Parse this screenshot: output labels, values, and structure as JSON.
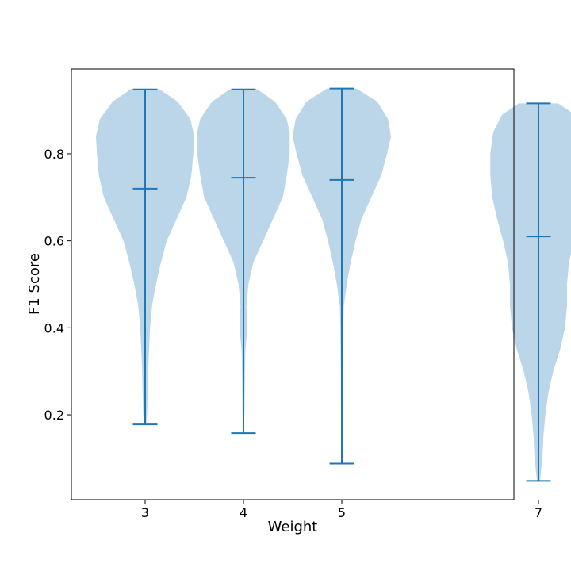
{
  "chart_data": {
    "type": "violin",
    "title": "",
    "xlabel": "Weight",
    "ylabel": "F1 Score",
    "categories": [
      "3",
      "4",
      "5",
      "7"
    ],
    "x_positions": [
      3,
      4,
      5,
      7
    ],
    "xlim": [
      2.25,
      6.75
    ],
    "ylim": [
      0.005,
      0.995
    ],
    "yticks": [
      0.2,
      0.4,
      0.6,
      0.8
    ],
    "ytick_labels": [
      "0.2",
      "0.4",
      "0.6",
      "0.8"
    ],
    "grid": false,
    "legend": "none",
    "colors": {
      "body": "#1f77b4",
      "body_alpha": 0.3,
      "lines": "#1f77b4"
    },
    "violins": [
      {
        "category": "3",
        "min": 0.178,
        "mean": 0.72,
        "max": 0.948,
        "density": [
          [
            0.178,
            0.01
          ],
          [
            0.2,
            0.02
          ],
          [
            0.25,
            0.025
          ],
          [
            0.3,
            0.03
          ],
          [
            0.35,
            0.04
          ],
          [
            0.4,
            0.05
          ],
          [
            0.45,
            0.07
          ],
          [
            0.5,
            0.11
          ],
          [
            0.55,
            0.16
          ],
          [
            0.6,
            0.22
          ],
          [
            0.65,
            0.32
          ],
          [
            0.7,
            0.42
          ],
          [
            0.75,
            0.47
          ],
          [
            0.8,
            0.49
          ],
          [
            0.84,
            0.5
          ],
          [
            0.88,
            0.46
          ],
          [
            0.92,
            0.33
          ],
          [
            0.948,
            0.15
          ]
        ]
      },
      {
        "category": "4",
        "min": 0.158,
        "mean": 0.745,
        "max": 0.948,
        "density": [
          [
            0.158,
            0.005
          ],
          [
            0.2,
            0.01
          ],
          [
            0.3,
            0.015
          ],
          [
            0.35,
            0.02
          ],
          [
            0.4,
            0.04
          ],
          [
            0.45,
            0.03
          ],
          [
            0.5,
            0.05
          ],
          [
            0.55,
            0.1
          ],
          [
            0.6,
            0.2
          ],
          [
            0.65,
            0.3
          ],
          [
            0.7,
            0.4
          ],
          [
            0.75,
            0.44
          ],
          [
            0.8,
            0.47
          ],
          [
            0.85,
            0.47
          ],
          [
            0.88,
            0.44
          ],
          [
            0.92,
            0.32
          ],
          [
            0.948,
            0.14
          ]
        ]
      },
      {
        "category": "5",
        "min": 0.088,
        "mean": 0.74,
        "max": 0.95,
        "density": [
          [
            0.088,
            0.005
          ],
          [
            0.2,
            0.008
          ],
          [
            0.3,
            0.01
          ],
          [
            0.4,
            0.015
          ],
          [
            0.45,
            0.02
          ],
          [
            0.5,
            0.05
          ],
          [
            0.55,
            0.09
          ],
          [
            0.6,
            0.14
          ],
          [
            0.65,
            0.2
          ],
          [
            0.7,
            0.3
          ],
          [
            0.75,
            0.4
          ],
          [
            0.8,
            0.46
          ],
          [
            0.84,
            0.5
          ],
          [
            0.88,
            0.47
          ],
          [
            0.92,
            0.36
          ],
          [
            0.95,
            0.15
          ]
        ]
      },
      {
        "category": "7",
        "min": 0.048,
        "mean": 0.61,
        "max": 0.916,
        "density": [
          [
            0.048,
            0.015
          ],
          [
            0.1,
            0.04
          ],
          [
            0.15,
            0.05
          ],
          [
            0.2,
            0.07
          ],
          [
            0.25,
            0.1
          ],
          [
            0.3,
            0.15
          ],
          [
            0.35,
            0.22
          ],
          [
            0.4,
            0.27
          ],
          [
            0.45,
            0.29
          ],
          [
            0.5,
            0.29
          ],
          [
            0.55,
            0.31
          ],
          [
            0.6,
            0.36
          ],
          [
            0.65,
            0.42
          ],
          [
            0.7,
            0.47
          ],
          [
            0.75,
            0.49
          ],
          [
            0.8,
            0.49
          ],
          [
            0.85,
            0.46
          ],
          [
            0.89,
            0.37
          ],
          [
            0.916,
            0.2
          ]
        ]
      }
    ]
  }
}
